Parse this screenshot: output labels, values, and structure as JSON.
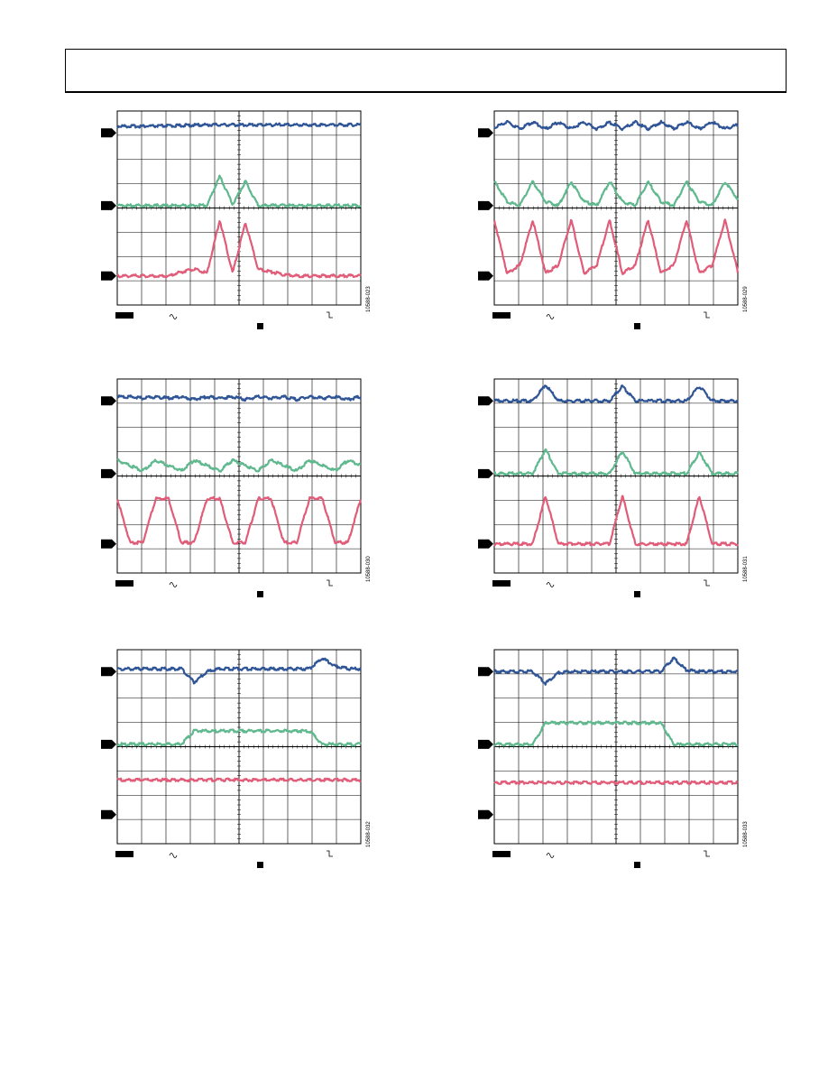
{
  "page": {
    "header_text": ""
  },
  "colors": {
    "blue": "#2f5597",
    "green": "#5fb88e",
    "red": "#e05c78",
    "grid": "#000000"
  },
  "chart_data": [
    {
      "id": "fig-023",
      "type": "line",
      "figure_id": "10588-023",
      "series": [
        {
          "color": "blue",
          "values": [
            0.5,
            0.5,
            0.5,
            0.5,
            0.52,
            0.55,
            0.58,
            0.6,
            0.6,
            0.6,
            0.6,
            0.6,
            0.6,
            0.6,
            0.6,
            0.6,
            0.6,
            0.6,
            0.6,
            0.6
          ]
        },
        {
          "color": "green",
          "values": [
            0,
            0,
            0,
            0,
            0,
            0,
            0,
            0,
            2.2,
            0.1,
            1.8,
            0,
            0,
            0,
            0,
            0,
            0,
            0,
            0,
            0
          ]
        },
        {
          "color": "red",
          "values": [
            0,
            0,
            0,
            0,
            0,
            0.3,
            0.5,
            0.2,
            4.2,
            0.2,
            4.0,
            0.5,
            0.3,
            0.1,
            0,
            0,
            0,
            0,
            0,
            0
          ]
        }
      ]
    },
    {
      "id": "fig-029",
      "type": "line",
      "figure_id": "10588-029",
      "series": [
        {
          "color": "blue",
          "values": [
            0.4,
            0.8,
            0.3,
            0.8,
            0.3,
            0.8,
            0.3,
            0.8,
            0.3,
            0.8,
            0.3,
            0.8,
            0.3,
            0.8,
            0.3,
            0.8,
            0.3,
            0.8,
            0.3,
            0.6
          ]
        },
        {
          "color": "green",
          "values": [
            1.8,
            0.3,
            0,
            1.8,
            0.3,
            0,
            1.8,
            0.3,
            0,
            1.8,
            0.3,
            0,
            1.8,
            0.3,
            0,
            1.8,
            0.3,
            0,
            1.8,
            0.5
          ]
        },
        {
          "color": "red",
          "values": [
            4.2,
            0.2,
            0.8,
            4.2,
            0.2,
            0.8,
            4.2,
            0.2,
            0.8,
            4.2,
            0.2,
            0.8,
            4.2,
            0.2,
            0.8,
            4.2,
            0.2,
            0.8,
            4.2,
            0.3
          ]
        }
      ]
    },
    {
      "id": "fig-030",
      "type": "line",
      "figure_id": "10588-030",
      "series": [
        {
          "color": "blue",
          "values": [
            0.3,
            0.3,
            0.2,
            0.3,
            0.2,
            0.3,
            0.1,
            0.3,
            0.2,
            0.3,
            0.1,
            0.3,
            0.2,
            0.3,
            0.1,
            0.3,
            0.2,
            0.3,
            0.1,
            0.3
          ]
        },
        {
          "color": "green",
          "values": [
            1.0,
            0.6,
            0.2,
            1.0,
            0.6,
            0.2,
            1.0,
            0.6,
            0.2,
            1.0,
            0.6,
            0.2,
            1.0,
            0.6,
            0.2,
            1.0,
            0.6,
            0.2,
            1.0,
            0.6
          ]
        },
        {
          "color": "red",
          "values": [
            3.4,
            0.1,
            0.1,
            3.4,
            3.4,
            0.1,
            0.1,
            3.4,
            3.4,
            0.1,
            0.1,
            3.4,
            3.4,
            0.1,
            0.1,
            3.4,
            3.4,
            0.1,
            0.1,
            3.4
          ]
        }
      ]
    },
    {
      "id": "fig-031",
      "type": "line",
      "figure_id": "10588-031",
      "series": [
        {
          "color": "blue",
          "values": [
            0,
            0,
            0,
            0,
            1.2,
            0,
            0,
            0,
            0,
            0,
            1.1,
            0,
            0,
            0,
            0,
            0,
            1.1,
            0,
            0,
            0
          ]
        },
        {
          "color": "green",
          "values": [
            0,
            0,
            0,
            0,
            1.8,
            0,
            0,
            0,
            0,
            0,
            1.7,
            0,
            0,
            0,
            0,
            0,
            1.6,
            0,
            0,
            0
          ]
        },
        {
          "color": "red",
          "values": [
            0,
            0,
            0,
            0,
            3.6,
            0,
            0,
            0,
            0,
            0,
            3.6,
            0,
            0,
            0,
            0,
            0,
            3.6,
            0,
            0,
            0
          ]
        }
      ]
    },
    {
      "id": "fig-032",
      "type": "line",
      "figure_id": "10588-032",
      "series": [
        {
          "color": "blue",
          "values": [
            0.2,
            0.2,
            0.2,
            0.2,
            0.2,
            0.2,
            -0.8,
            0.0,
            0.2,
            0.2,
            0.2,
            0.2,
            0.2,
            0.2,
            0.2,
            0.2,
            1.0,
            0.4,
            0.2,
            0.2
          ]
        },
        {
          "color": "green",
          "values": [
            0,
            0,
            0,
            0,
            0,
            0,
            1.0,
            1.0,
            1.0,
            1.0,
            1.0,
            1.0,
            1.0,
            1.0,
            1.0,
            1.0,
            0,
            0,
            0,
            0
          ]
        },
        {
          "color": "red",
          "values": [
            2.6,
            2.6,
            2.6,
            2.6,
            2.6,
            2.6,
            2.6,
            2.6,
            2.6,
            2.6,
            2.6,
            2.6,
            2.6,
            2.6,
            2.6,
            2.6,
            2.6,
            2.6,
            2.6,
            2.6
          ]
        }
      ]
    },
    {
      "id": "fig-033",
      "type": "line",
      "figure_id": "10588-033",
      "series": [
        {
          "color": "blue",
          "values": [
            0,
            0,
            0,
            0,
            -0.9,
            -0.1,
            0,
            0,
            0,
            0,
            0,
            0,
            0,
            0,
            1.0,
            0.1,
            0,
            0,
            0,
            0
          ]
        },
        {
          "color": "green",
          "values": [
            0,
            0,
            0,
            0,
            1.6,
            1.6,
            1.6,
            1.6,
            1.6,
            1.6,
            1.6,
            1.6,
            1.6,
            1.6,
            0,
            0,
            0,
            0,
            0,
            0
          ]
        },
        {
          "color": "red",
          "values": [
            2.4,
            2.4,
            2.4,
            2.4,
            2.4,
            2.4,
            2.4,
            2.4,
            2.4,
            2.4,
            2.4,
            2.4,
            2.4,
            2.4,
            2.4,
            2.4,
            2.4,
            2.4,
            2.4,
            2.4
          ]
        }
      ]
    }
  ]
}
